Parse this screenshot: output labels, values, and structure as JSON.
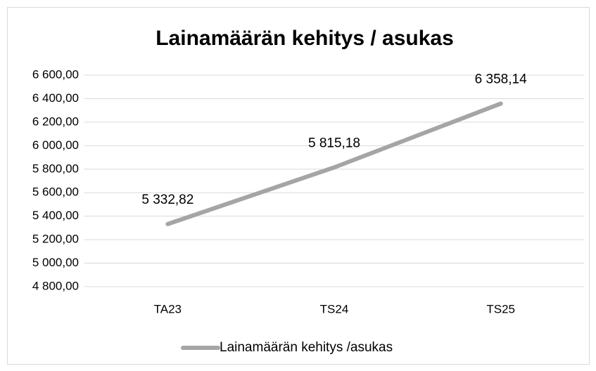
{
  "chart_data": {
    "type": "line",
    "title": "Lainamäärän kehitys / asukas",
    "categories": [
      "TA23",
      "TS24",
      "TS25"
    ],
    "series": [
      {
        "name": "Lainamäärän kehitys /asukas",
        "color": "#a5a5a5",
        "values": [
          5332.82,
          5815.18,
          6358.14
        ],
        "value_labels": [
          "5 332,82",
          "5 815,18",
          "6 358,14"
        ]
      }
    ],
    "ylim": [
      4800,
      6600
    ],
    "yticks": [
      {
        "value": 4800,
        "label": "4 800,00"
      },
      {
        "value": 5000,
        "label": "5 000,00"
      },
      {
        "value": 5200,
        "label": "5 200,00"
      },
      {
        "value": 5400,
        "label": "5 400,00"
      },
      {
        "value": 5600,
        "label": "5 600,00"
      },
      {
        "value": 5800,
        "label": "5 800,00"
      },
      {
        "value": 6000,
        "label": "6 000,00"
      },
      {
        "value": 6200,
        "label": "6 200,00"
      },
      {
        "value": 6400,
        "label": "6 400,00"
      },
      {
        "value": 6600,
        "label": "6 600,00"
      }
    ],
    "grid": true,
    "legend": "bottom"
  }
}
